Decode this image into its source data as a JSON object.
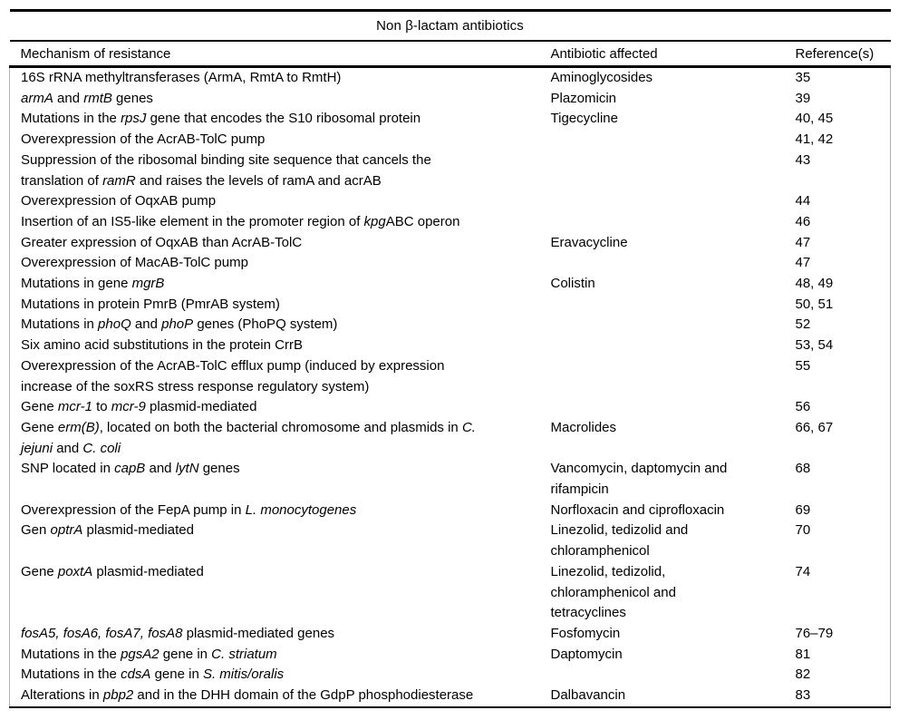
{
  "colors": {
    "background": "#ffffff",
    "text": "#000000",
    "rule": "#000000",
    "side_rule": "#b3b3b3"
  },
  "table": {
    "title": "Non β-lactam antibiotics",
    "columns": [
      "Mechanism of resistance",
      "Antibiotic affected",
      "Reference(s)"
    ],
    "rows": [
      {
        "mechanism": [
          {
            "t": "16S rRNA methyltransferases (ArmA, RmtA to RmtH)"
          }
        ],
        "antibiotic": "Aminoglycosides",
        "references": "35"
      },
      {
        "mechanism": [
          {
            "t": "armA",
            "i": true
          },
          {
            "t": " and "
          },
          {
            "t": "rmtB",
            "i": true
          },
          {
            "t": " genes"
          }
        ],
        "antibiotic": "Plazomicin",
        "references": "39"
      },
      {
        "mechanism": [
          {
            "t": "Mutations in the "
          },
          {
            "t": "rpsJ",
            "i": true
          },
          {
            "t": " gene that encodes the S10 ribosomal protein"
          }
        ],
        "antibiotic": "Tigecycline",
        "references": "40, 45"
      },
      {
        "mechanism": [
          {
            "t": "Overexpression of the AcrAB-TolC pump"
          }
        ],
        "antibiotic": "",
        "references": "41, 42"
      },
      {
        "mechanism": [
          {
            "t": "Suppression of the ribosomal binding site sequence that cancels the"
          },
          {
            "br": true
          },
          {
            "t": "translation of "
          },
          {
            "t": "ramR",
            "i": true
          },
          {
            "t": " and raises the levels of ramA and acrAB"
          }
        ],
        "antibiotic": "",
        "references": "43"
      },
      {
        "mechanism": [
          {
            "t": "Overexpression of OqxAB pump"
          }
        ],
        "antibiotic": "",
        "references": "44"
      },
      {
        "mechanism": [
          {
            "t": "Insertion of an IS5-like element in the promoter region of "
          },
          {
            "t": "kpg",
            "i": true
          },
          {
            "t": "ABC operon"
          }
        ],
        "antibiotic": "",
        "references": "46"
      },
      {
        "mechanism": [
          {
            "t": "Greater expression of OqxAB than AcrAB-TolC"
          }
        ],
        "antibiotic": "Eravacycline",
        "references": "47"
      },
      {
        "mechanism": [
          {
            "t": "Overexpression of MacAB-TolC pump"
          }
        ],
        "antibiotic": "",
        "references": "47"
      },
      {
        "mechanism": [
          {
            "t": "Mutations in gene "
          },
          {
            "t": "mgrB",
            "i": true
          }
        ],
        "antibiotic": "Colistin",
        "references": "48, 49"
      },
      {
        "mechanism": [
          {
            "t": "Mutations in protein PmrB (PmrAB system)"
          }
        ],
        "antibiotic": "",
        "references": "50, 51"
      },
      {
        "mechanism": [
          {
            "t": "Mutations in "
          },
          {
            "t": "phoQ",
            "i": true
          },
          {
            "t": " and "
          },
          {
            "t": "phoP",
            "i": true
          },
          {
            "t": " genes (PhoPQ system)"
          }
        ],
        "antibiotic": "",
        "references": "52"
      },
      {
        "mechanism": [
          {
            "t": "Six amino acid substitutions in the protein CrrB"
          }
        ],
        "antibiotic": "",
        "references": "53, 54"
      },
      {
        "mechanism": [
          {
            "t": "Overexpression of the AcrAB-TolC efflux pump (induced by expression"
          },
          {
            "br": true
          },
          {
            "t": "increase of the soxRS stress response regulatory system)"
          }
        ],
        "antibiotic": "",
        "references": "55"
      },
      {
        "mechanism": [
          {
            "t": "Gene "
          },
          {
            "t": "mcr-1",
            "i": true
          },
          {
            "t": " to "
          },
          {
            "t": "mcr-9",
            "i": true
          },
          {
            "t": " plasmid-mediated"
          }
        ],
        "antibiotic": "",
        "references": "56"
      },
      {
        "mechanism": [
          {
            "t": "Gene "
          },
          {
            "t": "erm(B)",
            "i": true
          },
          {
            "t": ", located on both the bacterial chromosome and plasmids in "
          },
          {
            "t": "C.",
            "i": true
          },
          {
            "br": true
          },
          {
            "t": "jejuni",
            "i": true
          },
          {
            "t": " and "
          },
          {
            "t": "C. coli",
            "i": true
          }
        ],
        "antibiotic": "Macrolides",
        "references": "66, 67"
      },
      {
        "mechanism": [
          {
            "t": "SNP located in "
          },
          {
            "t": "capB",
            "i": true
          },
          {
            "t": " and "
          },
          {
            "t": "lytN",
            "i": true
          },
          {
            "t": " genes"
          }
        ],
        "antibiotic": "Vancomycin, daptomycin and\nrifampicin",
        "references": "68"
      },
      {
        "mechanism": [
          {
            "t": "Overexpression of the FepA pump in "
          },
          {
            "t": "L. monocytogenes",
            "i": true
          }
        ],
        "antibiotic": "Norfloxacin and ciprofloxacin",
        "references": "69"
      },
      {
        "mechanism": [
          {
            "t": "Gen "
          },
          {
            "t": "optrA",
            "i": true
          },
          {
            "t": " plasmid-mediated"
          }
        ],
        "antibiotic": "Linezolid, tedizolid and\nchloramphenicol",
        "references": "70"
      },
      {
        "mechanism": [
          {
            "t": "Gene "
          },
          {
            "t": "poxtA",
            "i": true
          },
          {
            "t": " plasmid-mediated"
          }
        ],
        "antibiotic": "Linezolid, tedizolid,\nchloramphenicol and\ntetracyclines",
        "references": "74"
      },
      {
        "mechanism": [
          {
            "t": "fosA5, fosA6, fosA7, fosA8",
            "i": true
          },
          {
            "t": " plasmid-mediated genes"
          }
        ],
        "antibiotic": "Fosfomycin",
        "references": "76–79"
      },
      {
        "mechanism": [
          {
            "t": "Mutations in the "
          },
          {
            "t": "pgsA2",
            "i": true
          },
          {
            "t": " gene in "
          },
          {
            "t": "C. striatum",
            "i": true
          }
        ],
        "antibiotic": "Daptomycin",
        "references": "81"
      },
      {
        "mechanism": [
          {
            "t": "Mutations in the "
          },
          {
            "t": "cdsA",
            "i": true
          },
          {
            "t": " gene in "
          },
          {
            "t": "S. mitis/oralis",
            "i": true
          }
        ],
        "antibiotic": "",
        "references": "82"
      },
      {
        "mechanism": [
          {
            "t": "Alterations in "
          },
          {
            "t": "pbp2",
            "i": true
          },
          {
            "t": " and in the DHH domain of the GdpP phosphodiesterase"
          }
        ],
        "antibiotic": "Dalbavancin",
        "references": "83"
      }
    ]
  }
}
